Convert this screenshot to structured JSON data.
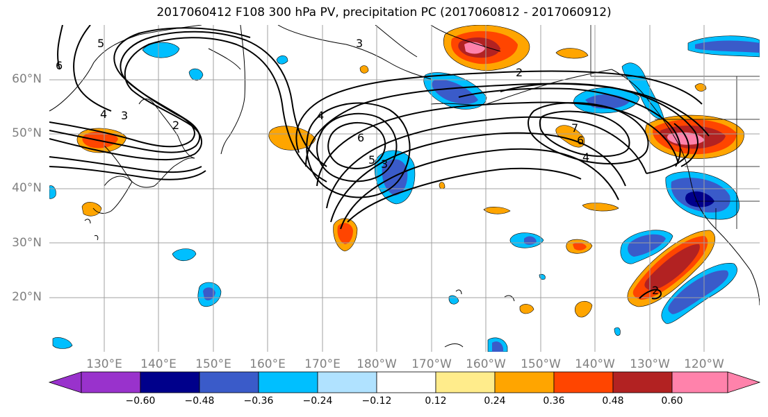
{
  "title": "2017060412 F108 300 hPa PV, precipitation PC (2017060812 - 2017060912)",
  "lat_labels": [
    "60°N",
    "50°N",
    "40°N",
    "30°N",
    "20°N"
  ],
  "lon_labels": [
    "130°E",
    "140°E",
    "150°E",
    "160°E",
    "170°E",
    "180°W",
    "170°W",
    "160°W",
    "150°W",
    "140°W",
    "130°W",
    "120°W"
  ],
  "colorbar": {
    "ticks": [
      "−0.60",
      "−0.48",
      "−0.36",
      "−0.24",
      "−0.12",
      "0.12",
      "0.24",
      "0.36",
      "0.48",
      "0.60"
    ],
    "colors": [
      "#9932cc",
      "#00008b",
      "#3a5bc9",
      "#00bfff",
      "#b0e2ff",
      "#ffffff",
      "#ffec8b",
      "#ffa500",
      "#ff4500",
      "#b22222",
      "#ff82ab"
    ]
  },
  "contour_labels": [
    "6",
    "5",
    "4",
    "3",
    "2",
    "3",
    "4",
    "6",
    "5",
    "3",
    "2",
    "7",
    "6",
    "4",
    "2"
  ]
}
